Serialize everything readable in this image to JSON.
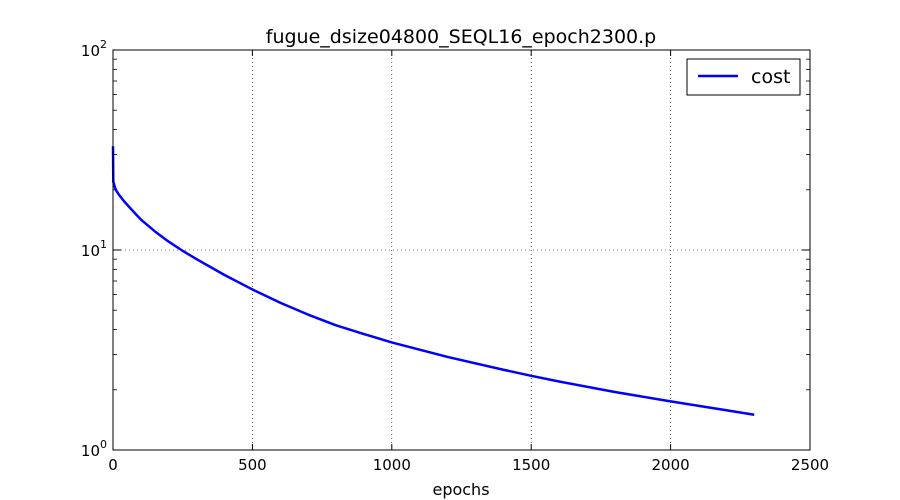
{
  "chart_data": {
    "type": "line",
    "title": "fugue_dsize04800_SEQL16_epoch2300.p",
    "xlabel": "epochs",
    "ylabel": "",
    "xlim": [
      0,
      2500
    ],
    "ylim": [
      1,
      100
    ],
    "yscale": "log",
    "grid": true,
    "legend_position": "top-right",
    "x_ticks": [
      {
        "value": 0,
        "label": "0"
      },
      {
        "value": 500,
        "label": "500"
      },
      {
        "value": 1000,
        "label": "1000"
      },
      {
        "value": 1500,
        "label": "1500"
      },
      {
        "value": 2000,
        "label": "2000"
      },
      {
        "value": 2500,
        "label": "2500"
      }
    ],
    "y_ticks": [
      {
        "value": 1,
        "base": "10",
        "exp": "0"
      },
      {
        "value": 10,
        "base": "10",
        "exp": "1"
      },
      {
        "value": 100,
        "base": "10",
        "exp": "2"
      }
    ],
    "series": [
      {
        "name": "cost",
        "color": "#0000ff",
        "x": [
          0,
          1,
          5,
          10,
          20,
          40,
          60,
          80,
          100,
          150,
          200,
          250,
          300,
          400,
          500,
          600,
          700,
          800,
          900,
          1000,
          1200,
          1400,
          1500,
          1600,
          1800,
          2000,
          2200,
          2300
        ],
        "y": [
          33,
          22,
          21,
          20,
          19,
          17.5,
          16.3,
          15.2,
          14.2,
          12.4,
          11,
          9.9,
          9.0,
          7.5,
          6.35,
          5.45,
          4.75,
          4.2,
          3.8,
          3.45,
          2.92,
          2.52,
          2.35,
          2.2,
          1.95,
          1.75,
          1.58,
          1.5
        ]
      }
    ]
  }
}
